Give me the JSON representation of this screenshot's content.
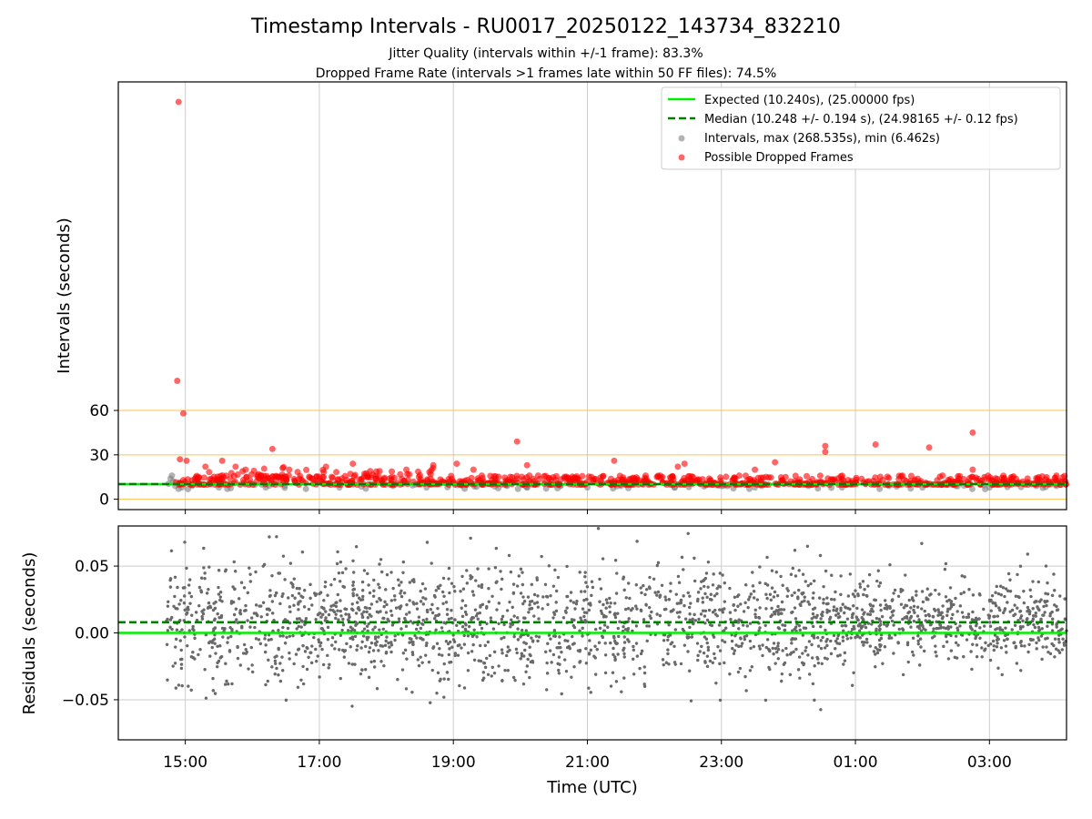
{
  "chart_data": [
    {
      "type": "scatter",
      "title": "Timestamp Intervals - RU0017_20250122_143734_832210",
      "subtitle_lines": [
        "Jitter Quality (intervals within +/-1 frame): 83.3%",
        "Dropped Frame Rate (intervals >1 frames late within 50 FF files): 74.5%"
      ],
      "xlabel": "",
      "ylabel": "Intervals (seconds)",
      "x_ticks": [
        "15:00",
        "17:00",
        "19:00",
        "21:00",
        "23:00",
        "01:00",
        "03:00"
      ],
      "y_ticks": [
        0,
        30,
        60
      ],
      "x_range_hours": [
        14.0,
        28.15
      ],
      "ylim": [
        -7,
        282
      ],
      "grid": "vertical at x ticks",
      "reference_lines": [
        0,
        30,
        60
      ],
      "expected_interval": 10.24,
      "median_interval": 10.248,
      "max_interval": 268.535,
      "min_interval": 6.462,
      "legend_position": "top-right",
      "legend": [
        "Expected (10.240s), (25.00000 fps)",
        "Median (10.248 +/- 0.194 s), (24.98165 +/- 0.12 fps)",
        "Intervals, max (268.535s), min (6.462s)",
        "Possible Dropped Frames"
      ],
      "series": [
        {
          "name": "Intervals, max (268.535s), min (6.462s)",
          "color": "#808080",
          "points": [
            [
              14.75,
              10.5
            ],
            [
              14.78,
              14
            ],
            [
              14.8,
              16
            ],
            [
              14.82,
              12
            ],
            [
              14.85,
              9
            ],
            [
              14.9,
              7
            ],
            [
              14.95,
              8
            ],
            [
              15.1,
              9
            ],
            [
              15.5,
              8
            ],
            [
              16.2,
              8
            ],
            [
              16.8,
              7
            ],
            [
              17.3,
              8
            ],
            [
              18.1,
              9
            ],
            [
              18.6,
              8
            ],
            [
              19.8,
              9
            ],
            [
              20.1,
              8
            ],
            [
              20.6,
              9
            ],
            [
              21.0,
              8
            ],
            [
              21.5,
              9
            ],
            [
              22.3,
              8
            ],
            [
              23.0,
              9
            ],
            [
              23.5,
              8
            ],
            [
              24.3,
              9
            ],
            [
              24.8,
              8
            ],
            [
              25.5,
              9
            ],
            [
              26.0,
              8
            ],
            [
              26.5,
              9
            ],
            [
              27.0,
              8
            ],
            [
              27.7,
              9
            ],
            [
              28.0,
              9
            ]
          ]
        },
        {
          "name": "Possible Dropped Frames",
          "color": "#ff0000",
          "points": [
            [
              14.9,
              268.5
            ],
            [
              14.88,
              80
            ],
            [
              14.97,
              58
            ],
            [
              14.92,
              27
            ],
            [
              15.02,
              26
            ],
            [
              15.3,
              22
            ],
            [
              15.55,
              26
            ],
            [
              15.75,
              22
            ],
            [
              15.9,
              20
            ],
            [
              16.3,
              34
            ],
            [
              16.55,
              20
            ],
            [
              17.1,
              22
            ],
            [
              17.5,
              24
            ],
            [
              17.9,
              19
            ],
            [
              18.3,
              20
            ],
            [
              18.7,
              23
            ],
            [
              19.05,
              24
            ],
            [
              19.3,
              20
            ],
            [
              19.95,
              39
            ],
            [
              20.1,
              23
            ],
            [
              21.4,
              26
            ],
            [
              22.35,
              22
            ],
            [
              22.45,
              24
            ],
            [
              23.5,
              20
            ],
            [
              23.8,
              25
            ],
            [
              24.55,
              36
            ],
            [
              24.55,
              32
            ],
            [
              25.3,
              37
            ],
            [
              25.7,
              16
            ],
            [
              26.1,
              35
            ],
            [
              26.3,
              16
            ],
            [
              26.75,
              45
            ],
            [
              26.75,
              20
            ],
            [
              27.0,
              13
            ],
            [
              27.5,
              12
            ],
            [
              28.0,
              16
            ]
          ],
          "band": {
            "from_hours": 14.85,
            "to_hours": 28.15,
            "min_seconds": 9.8,
            "max_seconds": 16
          }
        }
      ]
    },
    {
      "type": "scatter",
      "title": "",
      "xlabel": "Time (UTC)",
      "ylabel": "Residuals (seconds)",
      "x_ticks": [
        "15:00",
        "17:00",
        "19:00",
        "21:00",
        "23:00",
        "01:00",
        "03:00"
      ],
      "y_ticks": [
        "0.05",
        "0.00",
        "−0.05"
      ],
      "x_range_hours": [
        14.0,
        28.15
      ],
      "ylim": [
        -0.08,
        0.08
      ],
      "grid": "both",
      "expected_residual": 0.0,
      "median_residual": 0.008,
      "series": [
        {
          "name": "Residuals",
          "color": "#696969",
          "x_range_hours": [
            14.72,
            28.15
          ],
          "spread_sd": 0.022,
          "count": 2300
        }
      ]
    }
  ],
  "colors": {
    "expected": "#00ee00",
    "median": "#008000",
    "intervals": "#808080",
    "dropped": "#ff0000",
    "reference_line": "#ffc04d",
    "grid": "#cccccc"
  }
}
